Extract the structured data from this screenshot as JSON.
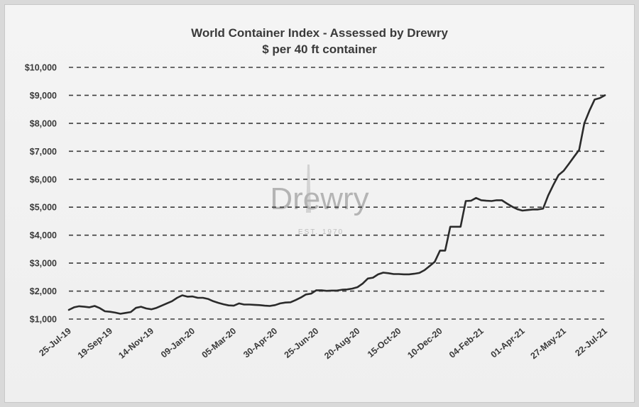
{
  "chart_data": {
    "type": "line",
    "title": "World Container Index - Assessed by Drewry",
    "subtitle": "$ per 40 ft container",
    "xlabel": "",
    "ylabel": "",
    "ylim": [
      1000,
      10000
    ],
    "y_ticks": [
      1000,
      2000,
      3000,
      4000,
      5000,
      6000,
      7000,
      8000,
      9000,
      10000
    ],
    "y_tick_labels": [
      "$1,000",
      "$2,000",
      "$3,000",
      "$4,000",
      "$5,000",
      "$6,000",
      "$7,000",
      "$8,000",
      "$9,000",
      "$10,000"
    ],
    "x_tick_labels": [
      "25-Jul-19",
      "19-Sep-19",
      "14-Nov-19",
      "09-Jan-20",
      "05-Mar-20",
      "30-Apr-20",
      "25-Jun-20",
      "20-Aug-20",
      "15-Oct-20",
      "10-Dec-20",
      "04-Feb-21",
      "01-Apr-21",
      "27-May-21",
      "22-Jul-21"
    ],
    "grid": "horizontal dashed",
    "line_color": "#2b2b2b",
    "series": [
      {
        "x": [
          "2019-07-25",
          "2019-08-01",
          "2019-08-08",
          "2019-08-15",
          "2019-08-22",
          "2019-08-29",
          "2019-09-05",
          "2019-09-12",
          "2019-09-19",
          "2019-09-26",
          "2019-10-03",
          "2019-10-10",
          "2019-10-17",
          "2019-10-24",
          "2019-10-31",
          "2019-11-07",
          "2019-11-14",
          "2019-11-21",
          "2019-11-28",
          "2019-12-05",
          "2019-12-12",
          "2019-12-19",
          "2019-12-26",
          "2020-01-02",
          "2020-01-09",
          "2020-01-16",
          "2020-01-23",
          "2020-01-30",
          "2020-02-06",
          "2020-02-13",
          "2020-02-20",
          "2020-02-27",
          "2020-03-05",
          "2020-03-12",
          "2020-03-19",
          "2020-03-26",
          "2020-04-02",
          "2020-04-09",
          "2020-04-16",
          "2020-04-23",
          "2020-04-30",
          "2020-05-07",
          "2020-05-14",
          "2020-05-21",
          "2020-05-28",
          "2020-06-04",
          "2020-06-11",
          "2020-06-18",
          "2020-06-25",
          "2020-07-02",
          "2020-07-09",
          "2020-07-16",
          "2020-07-23",
          "2020-07-30",
          "2020-08-06",
          "2020-08-13",
          "2020-08-20",
          "2020-08-27",
          "2020-09-03",
          "2020-09-10",
          "2020-09-17",
          "2020-09-24",
          "2020-10-01",
          "2020-10-08",
          "2020-10-15",
          "2020-10-22",
          "2020-10-29",
          "2020-11-05",
          "2020-11-12",
          "2020-11-19",
          "2020-11-26",
          "2020-12-03",
          "2020-12-10",
          "2020-12-17",
          "2020-12-24",
          "2020-12-31",
          "2021-01-07",
          "2021-01-14",
          "2021-01-21",
          "2021-01-28",
          "2021-02-04",
          "2021-02-11",
          "2021-02-18",
          "2021-02-25",
          "2021-03-04",
          "2021-03-11",
          "2021-03-18",
          "2021-03-25",
          "2021-04-01",
          "2021-04-08",
          "2021-04-15",
          "2021-04-22",
          "2021-04-29",
          "2021-05-06",
          "2021-05-13",
          "2021-05-20",
          "2021-05-27",
          "2021-06-03",
          "2021-06-10",
          "2021-06-17",
          "2021-06-24",
          "2021-07-01",
          "2021-07-08",
          "2021-07-15",
          "2021-07-22"
        ],
        "values": [
          1330,
          1420,
          1460,
          1440,
          1420,
          1470,
          1390,
          1280,
          1260,
          1230,
          1190,
          1220,
          1250,
          1400,
          1440,
          1380,
          1350,
          1400,
          1480,
          1560,
          1640,
          1760,
          1850,
          1800,
          1810,
          1760,
          1760,
          1720,
          1640,
          1580,
          1530,
          1490,
          1480,
          1560,
          1520,
          1520,
          1510,
          1500,
          1480,
          1470,
          1500,
          1560,
          1590,
          1600,
          1680,
          1770,
          1880,
          1910,
          2030,
          2030,
          2010,
          2020,
          2020,
          2050,
          2060,
          2090,
          2140,
          2270,
          2450,
          2480,
          2600,
          2660,
          2640,
          2610,
          2610,
          2600,
          2600,
          2620,
          2650,
          2750,
          2900,
          3050,
          3450,
          3450,
          4300,
          4300,
          4300,
          5220,
          5230,
          5330,
          5250,
          5230,
          5220,
          5250,
          5250,
          5130,
          5020,
          4930,
          4880,
          4900,
          4920,
          4920,
          4950,
          5420,
          5800,
          6150,
          6300,
          6550,
          6800,
          7050,
          8000,
          8450,
          8850,
          8900,
          9000
        ]
      }
    ],
    "watermark": {
      "brand": "Drewry",
      "established": "EST. 1970"
    }
  }
}
